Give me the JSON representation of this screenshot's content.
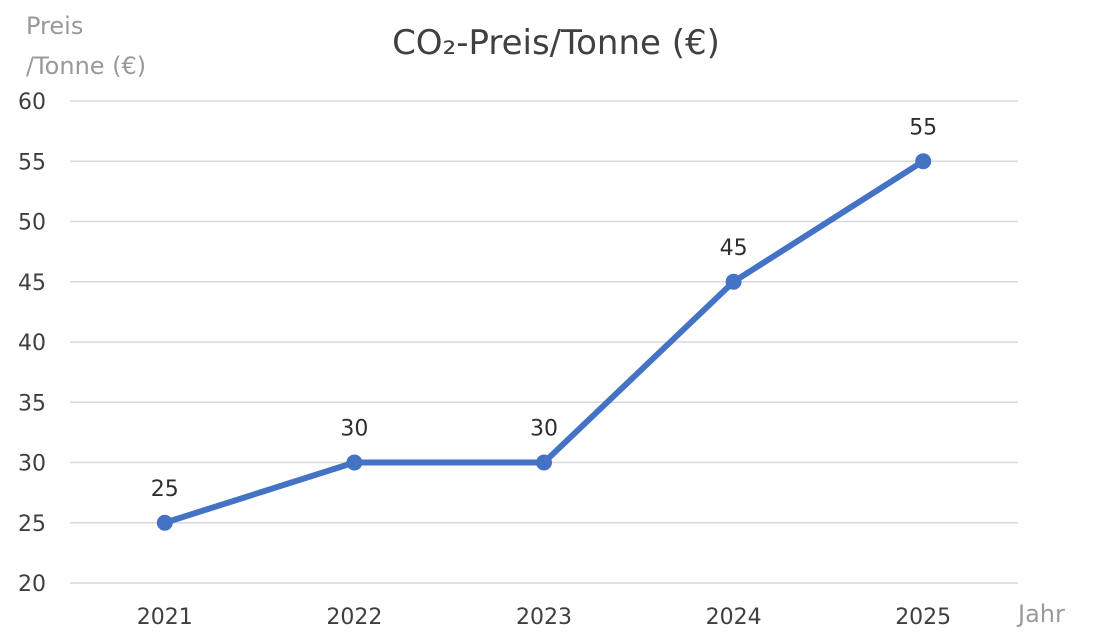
{
  "chart_data": {
    "type": "line",
    "title": "CO₂-Preis/Tonne (€)",
    "ylabel_lines": [
      "Preis",
      "/Tonne (€)"
    ],
    "xlabel": "Jahr",
    "categories": [
      "2021",
      "2022",
      "2023",
      "2024",
      "2025"
    ],
    "series": [
      {
        "values": [
          25,
          30,
          30,
          45,
          55
        ],
        "data_labels": [
          "25",
          "30",
          "30",
          "45",
          "55"
        ],
        "color": "#4472c4"
      }
    ],
    "ylim": [
      20,
      60
    ],
    "yticks": [
      20,
      25,
      30,
      35,
      40,
      45,
      50,
      55,
      60
    ],
    "ytick_labels": [
      "20",
      "25",
      "30",
      "35",
      "40",
      "45",
      "50",
      "55",
      "60"
    ],
    "grid": true,
    "legend": "none"
  }
}
